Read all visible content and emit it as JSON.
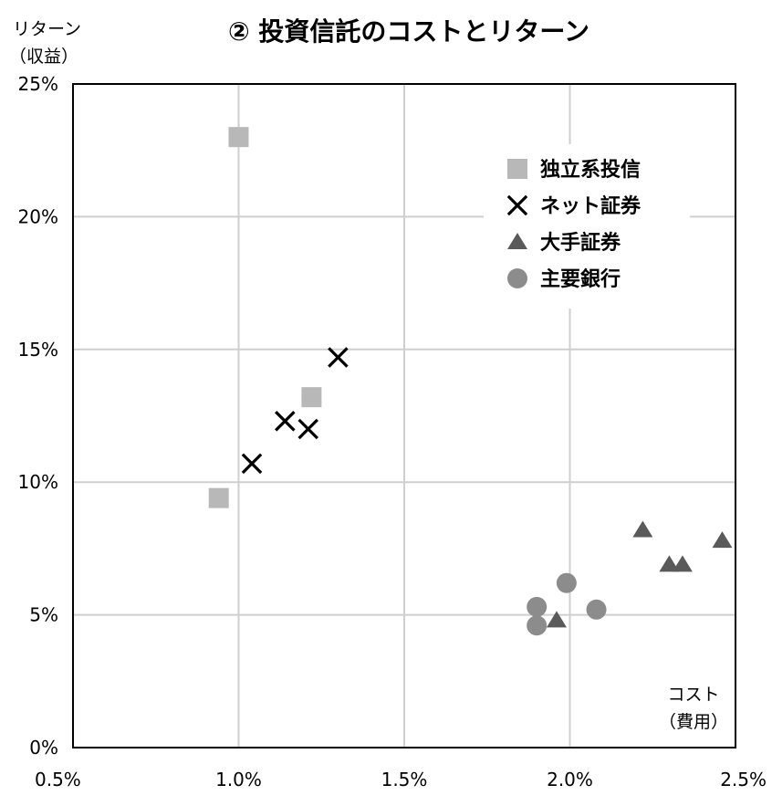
{
  "chart_data": {
    "type": "scatter",
    "title": "② 投資信託のコストとリターン",
    "ylabel_lines": [
      "リターン",
      "（収益）"
    ],
    "xlabel_lines": [
      "コスト",
      "（費用）"
    ],
    "xlim": [
      0.5,
      2.5
    ],
    "ylim": [
      0,
      25
    ],
    "x_ticks": [
      0.5,
      1.0,
      1.5,
      2.0,
      2.5
    ],
    "x_tick_labels": [
      "0.5%",
      "1.0%",
      "1.5%",
      "2.0%",
      "2.5%"
    ],
    "y_ticks": [
      0,
      5,
      10,
      15,
      20,
      25
    ],
    "y_tick_labels": [
      "0%",
      "5%",
      "10%",
      "15%",
      "20%",
      "25%"
    ],
    "grid": true,
    "legend_position": "top-right",
    "series": [
      {
        "name": "独立系投信",
        "marker": "square",
        "color": "#b8b8b8",
        "points": [
          {
            "x": 1.0,
            "y": 23.0
          },
          {
            "x": 1.22,
            "y": 13.2
          },
          {
            "x": 0.94,
            "y": 9.4
          }
        ]
      },
      {
        "name": "ネット証券",
        "marker": "x",
        "color": "#000000",
        "points": [
          {
            "x": 1.3,
            "y": 14.7
          },
          {
            "x": 1.14,
            "y": 12.3
          },
          {
            "x": 1.21,
            "y": 12.0
          },
          {
            "x": 1.04,
            "y": 10.7
          }
        ]
      },
      {
        "name": "大手証券",
        "marker": "triangle",
        "color": "#5a5a5a",
        "points": [
          {
            "x": 2.22,
            "y": 8.2
          },
          {
            "x": 2.46,
            "y": 7.8
          },
          {
            "x": 2.3,
            "y": 6.9
          },
          {
            "x": 2.34,
            "y": 6.9
          },
          {
            "x": 1.96,
            "y": 4.8
          }
        ]
      },
      {
        "name": "主要銀行",
        "marker": "circle",
        "color": "#8c8c8c",
        "points": [
          {
            "x": 1.99,
            "y": 6.2
          },
          {
            "x": 1.9,
            "y": 5.3
          },
          {
            "x": 2.08,
            "y": 5.2
          },
          {
            "x": 1.9,
            "y": 4.6
          }
        ]
      }
    ]
  }
}
